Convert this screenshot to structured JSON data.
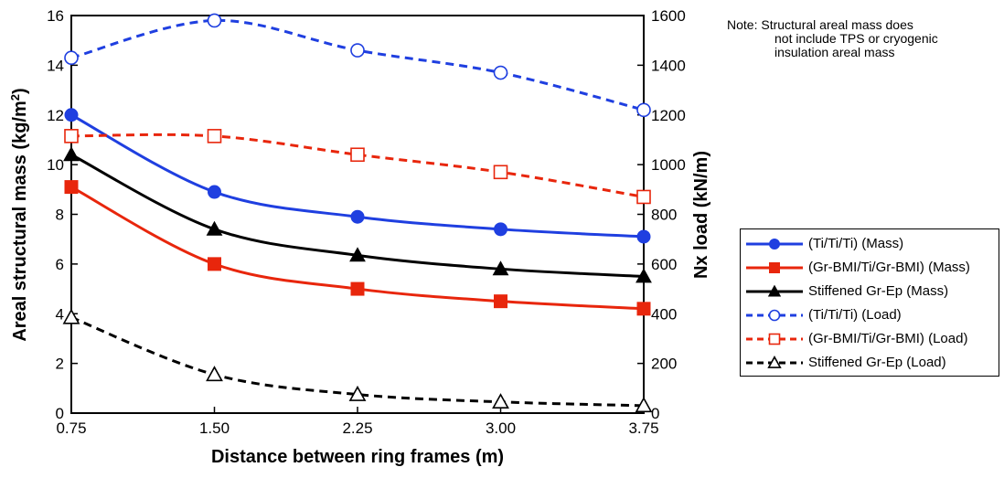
{
  "chart_data": {
    "type": "line",
    "x": [
      0.75,
      1.5,
      2.25,
      3.0,
      3.75
    ],
    "x_tick_labels": [
      "0.75",
      "1.50",
      "2.25",
      "3.00",
      "3.75"
    ],
    "xlabel": "Distance between ring frames (m)",
    "ylabel_main": "Areal structural mass (kg/m",
    "ylabel_sup": "2",
    "ylabel_end": ")",
    "y2label": "Nx load (kN/m)",
    "ylim": [
      0,
      16
    ],
    "y2lim": [
      0,
      1600
    ],
    "y_ticks": [
      0,
      2,
      4,
      6,
      8,
      10,
      12,
      14,
      16
    ],
    "y2_ticks": [
      0,
      200,
      400,
      600,
      800,
      1000,
      1200,
      1400,
      1600
    ],
    "legend_position": "right",
    "grid": false,
    "note_lines": [
      "Note: Structural areal mass does",
      "not include TPS or cryogenic",
      "insulation areal mass"
    ],
    "series": [
      {
        "name": "(Ti/Ti/Ti) (Mass)",
        "axis": "left",
        "values": [
          12.0,
          8.9,
          7.9,
          7.4,
          7.1
        ],
        "color": "#1f3fe0",
        "dash": "solid",
        "marker": "circle",
        "filled": true
      },
      {
        "name": "(Gr-BMI/Ti/Gr-BMI) (Mass)",
        "axis": "left",
        "values": [
          9.1,
          6.0,
          5.0,
          4.5,
          4.2
        ],
        "color": "#e8260c",
        "dash": "solid",
        "marker": "square",
        "filled": true
      },
      {
        "name": "Stiffened Gr-Ep (Mass)",
        "axis": "left",
        "values": [
          10.4,
          7.4,
          6.35,
          5.8,
          5.5
        ],
        "color": "#000000",
        "dash": "solid",
        "marker": "triangle",
        "filled": true
      },
      {
        "name": "(Ti/Ti/Ti) (Load)",
        "axis": "right",
        "values": [
          1430,
          1580,
          1460,
          1370,
          1220
        ],
        "color": "#1f3fe0",
        "dash": "dashed",
        "marker": "circle",
        "filled": false
      },
      {
        "name": "(Gr-BMI/Ti/Gr-BMI) (Load)",
        "axis": "right",
        "values": [
          1115,
          1115,
          1040,
          970,
          870
        ],
        "color": "#e8260c",
        "dash": "dashed",
        "marker": "square",
        "filled": false
      },
      {
        "name": "Stiffened Gr-Ep (Load)",
        "axis": "right",
        "values": [
          385,
          155,
          75,
          45,
          30
        ],
        "color": "#000000",
        "dash": "dashed",
        "marker": "triangle",
        "filled": false
      }
    ]
  }
}
